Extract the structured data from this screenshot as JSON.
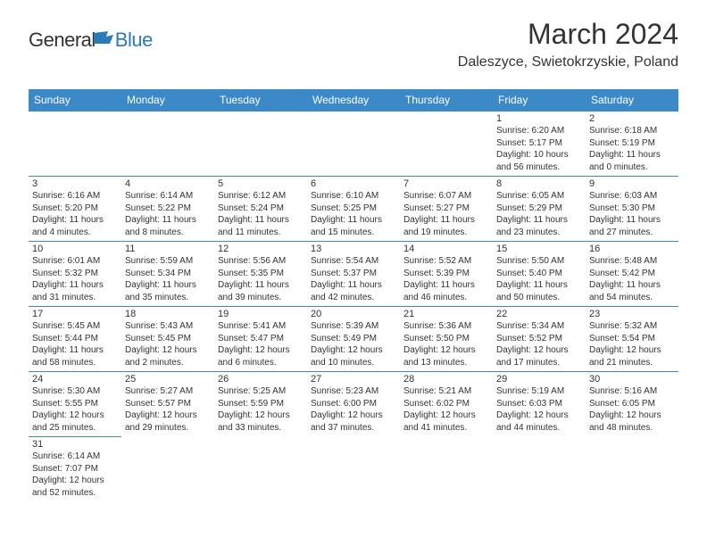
{
  "logo": {
    "text_general": "General",
    "text_blue": "Blue"
  },
  "header": {
    "month_year": "March 2024",
    "location": "Daleszyce, Swietokrzyskie, Poland"
  },
  "calendar": {
    "header_bg": "#3b89c7",
    "header_fg": "#ffffff",
    "border_color": "#3b89c7",
    "text_color": "#333333",
    "day_headers": [
      "Sunday",
      "Monday",
      "Tuesday",
      "Wednesday",
      "Thursday",
      "Friday",
      "Saturday"
    ],
    "weeks": [
      [
        null,
        null,
        null,
        null,
        null,
        {
          "num": "1",
          "sunrise": "6:20 AM",
          "sunset": "5:17 PM",
          "daylight": "10 hours and 56 minutes."
        },
        {
          "num": "2",
          "sunrise": "6:18 AM",
          "sunset": "5:19 PM",
          "daylight": "11 hours and 0 minutes."
        }
      ],
      [
        {
          "num": "3",
          "sunrise": "6:16 AM",
          "sunset": "5:20 PM",
          "daylight": "11 hours and 4 minutes."
        },
        {
          "num": "4",
          "sunrise": "6:14 AM",
          "sunset": "5:22 PM",
          "daylight": "11 hours and 8 minutes."
        },
        {
          "num": "5",
          "sunrise": "6:12 AM",
          "sunset": "5:24 PM",
          "daylight": "11 hours and 11 minutes."
        },
        {
          "num": "6",
          "sunrise": "6:10 AM",
          "sunset": "5:25 PM",
          "daylight": "11 hours and 15 minutes."
        },
        {
          "num": "7",
          "sunrise": "6:07 AM",
          "sunset": "5:27 PM",
          "daylight": "11 hours and 19 minutes."
        },
        {
          "num": "8",
          "sunrise": "6:05 AM",
          "sunset": "5:29 PM",
          "daylight": "11 hours and 23 minutes."
        },
        {
          "num": "9",
          "sunrise": "6:03 AM",
          "sunset": "5:30 PM",
          "daylight": "11 hours and 27 minutes."
        }
      ],
      [
        {
          "num": "10",
          "sunrise": "6:01 AM",
          "sunset": "5:32 PM",
          "daylight": "11 hours and 31 minutes."
        },
        {
          "num": "11",
          "sunrise": "5:59 AM",
          "sunset": "5:34 PM",
          "daylight": "11 hours and 35 minutes."
        },
        {
          "num": "12",
          "sunrise": "5:56 AM",
          "sunset": "5:35 PM",
          "daylight": "11 hours and 39 minutes."
        },
        {
          "num": "13",
          "sunrise": "5:54 AM",
          "sunset": "5:37 PM",
          "daylight": "11 hours and 42 minutes."
        },
        {
          "num": "14",
          "sunrise": "5:52 AM",
          "sunset": "5:39 PM",
          "daylight": "11 hours and 46 minutes."
        },
        {
          "num": "15",
          "sunrise": "5:50 AM",
          "sunset": "5:40 PM",
          "daylight": "11 hours and 50 minutes."
        },
        {
          "num": "16",
          "sunrise": "5:48 AM",
          "sunset": "5:42 PM",
          "daylight": "11 hours and 54 minutes."
        }
      ],
      [
        {
          "num": "17",
          "sunrise": "5:45 AM",
          "sunset": "5:44 PM",
          "daylight": "11 hours and 58 minutes."
        },
        {
          "num": "18",
          "sunrise": "5:43 AM",
          "sunset": "5:45 PM",
          "daylight": "12 hours and 2 minutes."
        },
        {
          "num": "19",
          "sunrise": "5:41 AM",
          "sunset": "5:47 PM",
          "daylight": "12 hours and 6 minutes."
        },
        {
          "num": "20",
          "sunrise": "5:39 AM",
          "sunset": "5:49 PM",
          "daylight": "12 hours and 10 minutes."
        },
        {
          "num": "21",
          "sunrise": "5:36 AM",
          "sunset": "5:50 PM",
          "daylight": "12 hours and 13 minutes."
        },
        {
          "num": "22",
          "sunrise": "5:34 AM",
          "sunset": "5:52 PM",
          "daylight": "12 hours and 17 minutes."
        },
        {
          "num": "23",
          "sunrise": "5:32 AM",
          "sunset": "5:54 PM",
          "daylight": "12 hours and 21 minutes."
        }
      ],
      [
        {
          "num": "24",
          "sunrise": "5:30 AM",
          "sunset": "5:55 PM",
          "daylight": "12 hours and 25 minutes."
        },
        {
          "num": "25",
          "sunrise": "5:27 AM",
          "sunset": "5:57 PM",
          "daylight": "12 hours and 29 minutes."
        },
        {
          "num": "26",
          "sunrise": "5:25 AM",
          "sunset": "5:59 PM",
          "daylight": "12 hours and 33 minutes."
        },
        {
          "num": "27",
          "sunrise": "5:23 AM",
          "sunset": "6:00 PM",
          "daylight": "12 hours and 37 minutes."
        },
        {
          "num": "28",
          "sunrise": "5:21 AM",
          "sunset": "6:02 PM",
          "daylight": "12 hours and 41 minutes."
        },
        {
          "num": "29",
          "sunrise": "5:19 AM",
          "sunset": "6:03 PM",
          "daylight": "12 hours and 44 minutes."
        },
        {
          "num": "30",
          "sunrise": "5:16 AM",
          "sunset": "6:05 PM",
          "daylight": "12 hours and 48 minutes."
        }
      ],
      [
        {
          "num": "31",
          "sunrise": "6:14 AM",
          "sunset": "7:07 PM",
          "daylight": "12 hours and 52 minutes."
        },
        null,
        null,
        null,
        null,
        null,
        null
      ]
    ]
  }
}
